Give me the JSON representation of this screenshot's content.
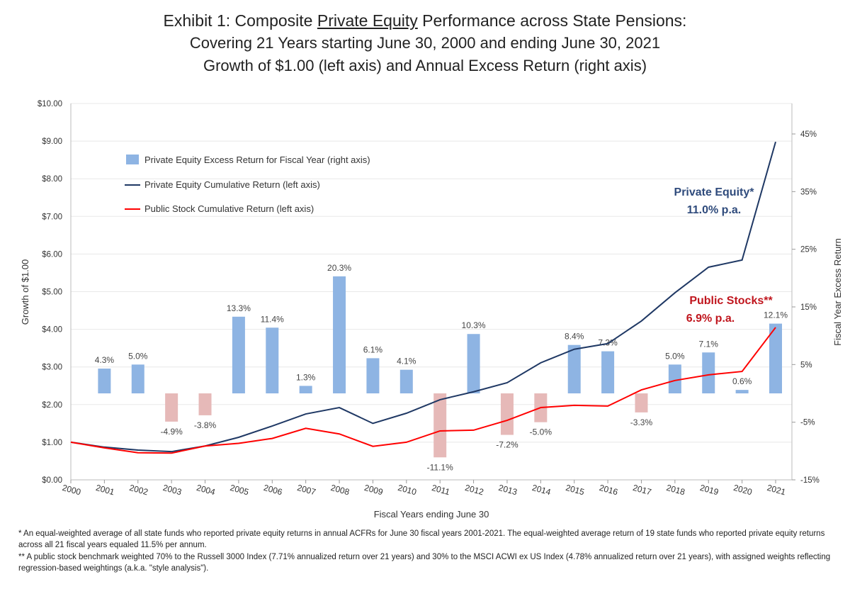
{
  "title": {
    "line1_prefix": "Exhibit 1:  Composite ",
    "line1_underlined": "Private Equity",
    "line1_suffix": " Performance across State Pensions:",
    "line2": "Covering 21 Years starting June 30, 2000 and ending June 30, 2021",
    "line3": "Growth of $1.00 (left axis) and Annual Excess Return (right axis)"
  },
  "chart_data": {
    "type": "bar+line",
    "xlabel": "Fiscal Years ending June 30",
    "ylabel_left": "Growth of $1.00",
    "ylabel_right": "Fiscal Year Excess Return",
    "ylim_left": [
      0,
      10
    ],
    "ylim_right": [
      -15,
      45
    ],
    "left_ticks": [
      "$0.00",
      "$1.00",
      "$2.00",
      "$3.00",
      "$4.00",
      "$5.00",
      "$6.00",
      "$7.00",
      "$8.00",
      "$9.00",
      "$10.00"
    ],
    "right_ticks": [
      "-15%",
      "-5%",
      "5%",
      "15%",
      "25%",
      "35%",
      "45%"
    ],
    "grid": true,
    "legend_placement": "top-left",
    "categories": [
      "2000",
      "2001",
      "2002",
      "2003",
      "2004",
      "2005",
      "2006",
      "2007",
      "2008",
      "2009",
      "2010",
      "2011",
      "2012",
      "2013",
      "2014",
      "2015",
      "2016",
      "2017",
      "2018",
      "2019",
      "2020",
      "2021"
    ],
    "bars": {
      "name": "Private Equity Excess Return for Fiscal Year (right axis)",
      "axis": "right",
      "values": [
        null,
        4.3,
        5.0,
        -4.9,
        -3.8,
        13.3,
        11.4,
        1.3,
        20.3,
        6.1,
        4.1,
        -11.1,
        10.3,
        -7.2,
        -5.0,
        8.4,
        7.3,
        -3.3,
        5.0,
        7.1,
        0.6,
        12.1
      ],
      "labels": [
        "",
        "4.3%",
        "5.0%",
        "-4.9%",
        "-3.8%",
        "13.3%",
        "11.4%",
        "1.3%",
        "20.3%",
        "6.1%",
        "4.1%",
        "-11.1%",
        "10.3%",
        "-7.2%",
        "-5.0%",
        "8.4%",
        "7.3%",
        "-3.3%",
        "5.0%",
        "7.1%",
        "0.6%",
        "12.1%"
      ],
      "positive_color": "#8eb4e3",
      "negative_color": "#e6b9b8"
    },
    "series": [
      {
        "name": "Private Equity Cumulative Return (left axis)",
        "axis": "left",
        "color": "#1f3864",
        "values": [
          1.0,
          0.87,
          0.79,
          0.75,
          0.9,
          1.13,
          1.43,
          1.75,
          1.92,
          1.5,
          1.77,
          2.13,
          2.34,
          2.58,
          3.11,
          3.47,
          3.62,
          4.22,
          4.97,
          5.65,
          5.84,
          8.98
        ]
      },
      {
        "name": "Public Stock Cumulative Return (left axis)",
        "axis": "left",
        "color": "#ff0000",
        "values": [
          1.0,
          0.85,
          0.72,
          0.71,
          0.9,
          0.97,
          1.1,
          1.37,
          1.22,
          0.89,
          1.0,
          1.3,
          1.32,
          1.58,
          1.92,
          1.98,
          1.96,
          2.39,
          2.64,
          2.79,
          2.88,
          4.05
        ]
      }
    ],
    "annotations": [
      {
        "line1": "Private Equity*",
        "line2": "11.0% p.a.",
        "color": "#2f4b7c"
      },
      {
        "line1": "Public Stocks**",
        "line2": "6.9% p.a.",
        "color": "#c0161e"
      }
    ]
  },
  "footnotes": [
    "*  An equal-weighted average of all state funds who reported  private equity returns in annual ACFRs for June 30 fiscal years 2001-2021.  The equal-weighted average return of 19 state funds who reported private equity returns across all 21 fiscal years equaled 11.5% per annum.",
    "** A public stock benchmark weighted 70% to the Russell 3000 Index (7.71% annualized return over 21 years) and 30% to the MSCI ACWI ex US Index (4.78% annualized return over 21 years), with assigned weights reflecting regression-based weightings (a.k.a. \"style analysis\")."
  ]
}
